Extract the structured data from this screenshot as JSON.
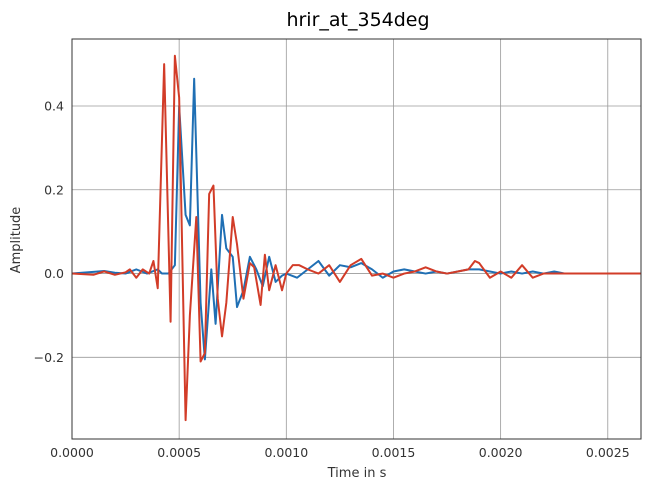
{
  "chart_data": {
    "type": "line",
    "title": "hrir_at_354deg",
    "xlabel": "Time in s",
    "ylabel": "Amplitude",
    "xlim": [
      0,
      0.002655
    ],
    "ylim": [
      -0.395,
      0.56
    ],
    "grid": true,
    "legend": "none",
    "xticks": [
      0,
      0.0005,
      0.001,
      0.0015,
      0.002,
      0.0025
    ],
    "xtick_labels": [
      "0.0000",
      "0.0005",
      "0.0010",
      "0.0015",
      "0.0020",
      "0.0025"
    ],
    "yticks": [
      -0.2,
      0.0,
      0.2,
      0.4
    ],
    "ytick_labels": [
      "−0.2",
      "0.0",
      "0.2",
      "0.4"
    ],
    "colors": {
      "series_1": "#1f6fb4",
      "series_2": "#d23c28"
    },
    "series": [
      {
        "color": "#1f6fb4",
        "x": [
          0,
          0.0001,
          0.00015,
          0.0002,
          0.00025,
          0.0003,
          0.00035,
          0.0004,
          0.00042,
          0.00045,
          0.00048,
          0.0005,
          0.00053,
          0.00055,
          0.00057,
          0.0006,
          0.00062,
          0.00065,
          0.00067,
          0.0007,
          0.00072,
          0.00075,
          0.00077,
          0.0008,
          0.00083,
          0.00086,
          0.00089,
          0.00092,
          0.00095,
          0.00098,
          0.001,
          0.00105,
          0.0011,
          0.00115,
          0.0012,
          0.00125,
          0.0013,
          0.00135,
          0.0014,
          0.00145,
          0.0015,
          0.00155,
          0.0016,
          0.00165,
          0.0017,
          0.00175,
          0.0018,
          0.00185,
          0.0019,
          0.00195,
          0.002,
          0.00205,
          0.0021,
          0.00215,
          0.0022,
          0.00225,
          0.0023,
          0.0024,
          0.0025,
          0.00265
        ],
        "y": [
          0.0,
          0.004,
          0.006,
          0.002,
          0.0,
          0.01,
          0.0,
          0.01,
          0.0,
          0.0,
          0.02,
          0.4,
          0.14,
          0.115,
          0.465,
          -0.07,
          -0.205,
          0.01,
          -0.12,
          0.14,
          0.06,
          0.04,
          -0.08,
          -0.04,
          0.04,
          0.01,
          -0.03,
          0.04,
          -0.02,
          -0.005,
          0.0,
          -0.01,
          0.01,
          0.03,
          -0.005,
          0.02,
          0.015,
          0.025,
          0.01,
          -0.01,
          0.005,
          0.01,
          0.005,
          0.0,
          0.005,
          0.0,
          0.005,
          0.01,
          0.01,
          0.005,
          0.0,
          0.005,
          0.0,
          0.005,
          0.0,
          0.005,
          0.0,
          0.0,
          0.0,
          0.0
        ]
      },
      {
        "color": "#d23c28",
        "x": [
          0,
          0.0001,
          0.00015,
          0.0002,
          0.00025,
          0.00027,
          0.0003,
          0.00033,
          0.00036,
          0.00038,
          0.0004,
          0.00043,
          0.00046,
          0.00048,
          0.0005,
          0.00053,
          0.00055,
          0.00058,
          0.0006,
          0.00062,
          0.00064,
          0.00066,
          0.00068,
          0.0007,
          0.00072,
          0.00075,
          0.00077,
          0.0008,
          0.00083,
          0.00085,
          0.00088,
          0.0009,
          0.00092,
          0.00095,
          0.00098,
          0.001,
          0.00103,
          0.00106,
          0.0011,
          0.00115,
          0.0012,
          0.00125,
          0.0013,
          0.00135,
          0.0014,
          0.00145,
          0.0015,
          0.00155,
          0.0016,
          0.00165,
          0.0017,
          0.00175,
          0.0018,
          0.00185,
          0.00188,
          0.0019,
          0.00195,
          0.002,
          0.00205,
          0.0021,
          0.00215,
          0.0022,
          0.0023,
          0.0024,
          0.0025,
          0.00265
        ],
        "y": [
          0.0,
          -0.003,
          0.005,
          -0.003,
          0.003,
          0.01,
          -0.01,
          0.01,
          0.0,
          0.03,
          -0.035,
          0.5,
          -0.115,
          0.52,
          0.42,
          -0.35,
          -0.1,
          0.135,
          -0.21,
          -0.19,
          0.19,
          0.21,
          -0.06,
          -0.15,
          -0.07,
          0.135,
          0.07,
          -0.06,
          0.025,
          0.015,
          -0.075,
          0.045,
          -0.04,
          0.02,
          -0.04,
          0.0,
          0.02,
          0.02,
          0.01,
          0.0,
          0.02,
          -0.02,
          0.02,
          0.035,
          -0.005,
          0.0,
          -0.01,
          0.0,
          0.005,
          0.015,
          0.005,
          0.0,
          0.005,
          0.01,
          0.03,
          0.025,
          -0.01,
          0.005,
          -0.01,
          0.02,
          -0.01,
          0.0,
          0.0,
          0.0,
          0.0,
          0.0
        ]
      }
    ]
  }
}
